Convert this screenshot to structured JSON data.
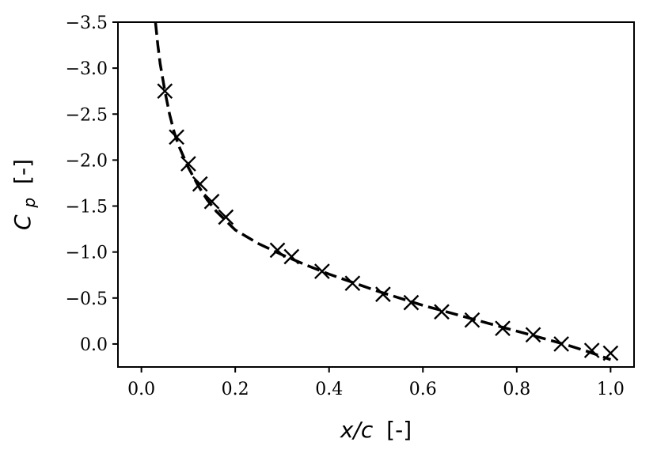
{
  "chart_data": {
    "type": "line",
    "xlabel_var": "x/c",
    "xlabel_unit": "[-]",
    "ylabel_var": "C",
    "ylabel_sub": "p",
    "ylabel_unit": "[-]",
    "x_ticks": [
      0.0,
      0.2,
      0.4,
      0.6,
      0.8,
      1.0
    ],
    "x_tick_labels": [
      "0.0",
      "0.2",
      "0.4",
      "0.6",
      "0.8",
      "1.0"
    ],
    "y_ticks": [
      0.0,
      -0.5,
      -1.0,
      -1.5,
      -2.0,
      -2.5,
      -3.0,
      -3.5
    ],
    "y_tick_labels": [
      "0.0",
      "−0.5",
      "−1.0",
      "−1.5",
      "−2.0",
      "−2.5",
      "−3.0",
      "−3.5"
    ],
    "xlim": [
      -0.05,
      1.05
    ],
    "ylim": [
      0.25,
      -3.5
    ],
    "y_inverted": true,
    "grid": false,
    "legend": "none",
    "series": [
      {
        "style": "dashed-line",
        "color": "#000000",
        "x": [
          0.03,
          0.035,
          0.04,
          0.05,
          0.06,
          0.07,
          0.08,
          0.1,
          0.12,
          0.14,
          0.16,
          0.18,
          0.2,
          0.25,
          0.3,
          0.35,
          0.4,
          0.45,
          0.5,
          0.55,
          0.6,
          0.65,
          0.7,
          0.75,
          0.8,
          0.85,
          0.9,
          0.95,
          1.0
        ],
        "y": [
          -3.5,
          -3.25,
          -3.05,
          -2.75,
          -2.5,
          -2.3,
          -2.15,
          -1.92,
          -1.73,
          -1.57,
          -1.44,
          -1.34,
          -1.24,
          -1.09,
          -0.97,
          -0.86,
          -0.76,
          -0.67,
          -0.58,
          -0.5,
          -0.42,
          -0.35,
          -0.28,
          -0.21,
          -0.14,
          -0.07,
          0.0,
          0.08,
          0.17
        ]
      },
      {
        "style": "x-markers",
        "color": "#000000",
        "x": [
          0.05,
          0.075,
          0.1,
          0.125,
          0.15,
          0.18,
          0.29,
          0.32,
          0.385,
          0.45,
          0.515,
          0.575,
          0.64,
          0.705,
          0.77,
          0.835,
          0.895,
          0.96,
          1.0
        ],
        "y": [
          -2.75,
          -2.25,
          -1.96,
          -1.74,
          -1.55,
          -1.38,
          -1.02,
          -0.95,
          -0.79,
          -0.66,
          -0.54,
          -0.45,
          -0.35,
          -0.26,
          -0.17,
          -0.1,
          0.0,
          0.07,
          0.1
        ]
      }
    ]
  }
}
